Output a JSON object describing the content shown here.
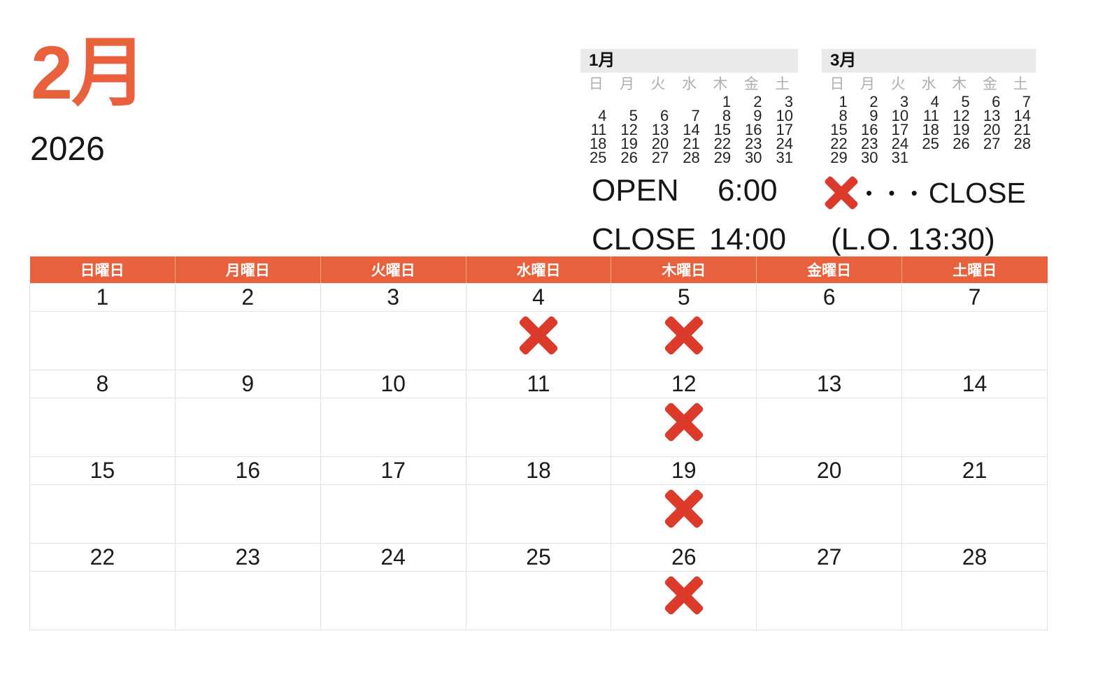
{
  "header": {
    "month_title": "2月",
    "year": "2026"
  },
  "hours": {
    "open_label": "OPEN",
    "open_time": "6:00",
    "close_label": "CLOSE",
    "close_time": "14:00",
    "last_order_note": "(L.O. 13:30)"
  },
  "legend": {
    "x_icon": "close-x-mark",
    "dots": "• • •",
    "label": "CLOSE"
  },
  "mini_calendars": [
    {
      "title": "1月",
      "weekdays": [
        "日",
        "月",
        "火",
        "水",
        "木",
        "金",
        "土"
      ],
      "weeks": [
        [
          "",
          "",
          "",
          "",
          "1",
          "2",
          "3"
        ],
        [
          "4",
          "5",
          "6",
          "7",
          "8",
          "9",
          "10"
        ],
        [
          "11",
          "12",
          "13",
          "14",
          "15",
          "16",
          "17"
        ],
        [
          "18",
          "19",
          "20",
          "21",
          "22",
          "23",
          "24"
        ],
        [
          "25",
          "26",
          "27",
          "28",
          "29",
          "30",
          "31"
        ]
      ]
    },
    {
      "title": "3月",
      "weekdays": [
        "日",
        "月",
        "火",
        "水",
        "木",
        "金",
        "土"
      ],
      "weeks": [
        [
          "1",
          "2",
          "3",
          "4",
          "5",
          "6",
          "7"
        ],
        [
          "8",
          "9",
          "10",
          "11",
          "12",
          "13",
          "14"
        ],
        [
          "15",
          "16",
          "17",
          "18",
          "19",
          "20",
          "21"
        ],
        [
          "22",
          "23",
          "24",
          "25",
          "26",
          "27",
          "28"
        ],
        [
          "29",
          "30",
          "31",
          "",
          "",
          "",
          ""
        ]
      ]
    }
  ],
  "main_calendar": {
    "weekday_headers": [
      "日曜日",
      "月曜日",
      "火曜日",
      "水曜日",
      "木曜日",
      "金曜日",
      "土曜日"
    ],
    "closed_dates": [
      4,
      5,
      12,
      19,
      26
    ],
    "weeks": [
      [
        {
          "date": "1",
          "closed": false
        },
        {
          "date": "2",
          "closed": false
        },
        {
          "date": "3",
          "closed": false
        },
        {
          "date": "4",
          "closed": true
        },
        {
          "date": "5",
          "closed": true
        },
        {
          "date": "6",
          "closed": false
        },
        {
          "date": "7",
          "closed": false
        }
      ],
      [
        {
          "date": "8",
          "closed": false
        },
        {
          "date": "9",
          "closed": false
        },
        {
          "date": "10",
          "closed": false
        },
        {
          "date": "11",
          "closed": false
        },
        {
          "date": "12",
          "closed": true
        },
        {
          "date": "13",
          "closed": false
        },
        {
          "date": "14",
          "closed": false
        }
      ],
      [
        {
          "date": "15",
          "closed": false
        },
        {
          "date": "16",
          "closed": false
        },
        {
          "date": "17",
          "closed": false
        },
        {
          "date": "18",
          "closed": false
        },
        {
          "date": "19",
          "closed": true
        },
        {
          "date": "20",
          "closed": false
        },
        {
          "date": "21",
          "closed": false
        }
      ],
      [
        {
          "date": "22",
          "closed": false
        },
        {
          "date": "23",
          "closed": false
        },
        {
          "date": "24",
          "closed": false
        },
        {
          "date": "25",
          "closed": false
        },
        {
          "date": "26",
          "closed": true
        },
        {
          "date": "27",
          "closed": false
        },
        {
          "date": "28",
          "closed": false
        }
      ]
    ]
  },
  "colors": {
    "accent_orange": "#E8613C",
    "close_red": "#DC3A2A",
    "grid_border": "#E2E2E2",
    "mini_header_bg": "#EAEAEA",
    "weekday_gray": "#AFAFAF"
  }
}
